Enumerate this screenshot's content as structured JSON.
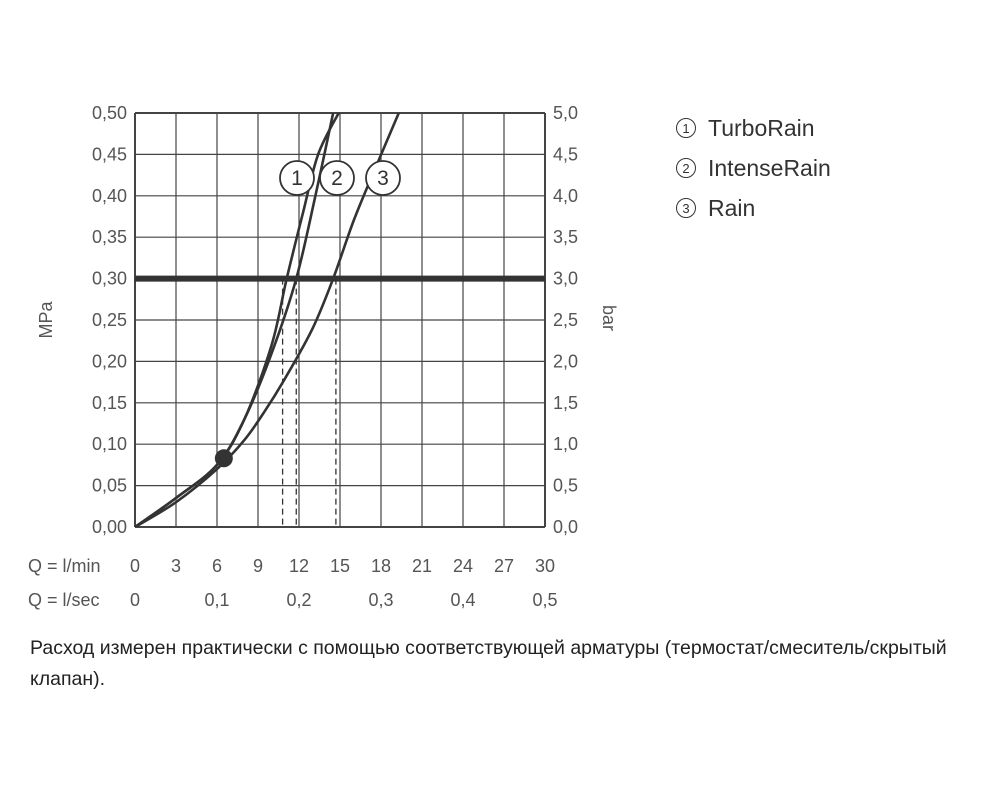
{
  "chart_data": {
    "type": "line",
    "x_scales": [
      {
        "label": "Q = l/min",
        "ticks": [
          "0",
          "3",
          "6",
          "9",
          "12",
          "15",
          "18",
          "21",
          "24",
          "27",
          "30"
        ]
      },
      {
        "label": "Q = l/sec",
        "ticks": [
          "0",
          "0,1",
          "0,2",
          "0,3",
          "0,4",
          "0,5"
        ]
      }
    ],
    "xlim": [
      0,
      30
    ],
    "ylim": [
      0,
      0.5
    ],
    "y_left": {
      "label": "MPa",
      "ticks": [
        "0,00",
        "0,05",
        "0,10",
        "0,15",
        "0,20",
        "0,25",
        "0,30",
        "0,35",
        "0,40",
        "0,45",
        "0,50"
      ]
    },
    "y_right": {
      "label": "bar",
      "ticks": [
        "0,0",
        "0,5",
        "1,0",
        "1,5",
        "2,0",
        "2,5",
        "3,0",
        "3,5",
        "4,0",
        "4,5",
        "5,0"
      ]
    },
    "grid": true,
    "reference_line": {
      "y": 0.3
    },
    "series": [
      {
        "name": "TurboRain",
        "label": "1",
        "x": [
          0,
          3,
          6,
          8,
          10,
          11.1,
          12.3,
          13.4,
          14.9
        ],
        "y": [
          0,
          0.035,
          0.075,
          0.13,
          0.22,
          0.3,
          0.38,
          0.45,
          0.5
        ]
      },
      {
        "name": "IntenseRain",
        "label": "2",
        "x": [
          0,
          3,
          6,
          8,
          10,
          11.8,
          13.2,
          14.5
        ],
        "y": [
          0,
          0.035,
          0.075,
          0.13,
          0.21,
          0.3,
          0.4,
          0.5
        ]
      },
      {
        "name": "Rain",
        "label": "3",
        "x": [
          0,
          3,
          6,
          8,
          9.5,
          11,
          13,
          14.5,
          16,
          17.5,
          19.3
        ],
        "y": [
          0,
          0.03,
          0.07,
          0.105,
          0.14,
          0.18,
          0.24,
          0.3,
          0.37,
          0.43,
          0.5
        ]
      }
    ],
    "marker": {
      "x": 6.5,
      "y": 0.083
    },
    "drop_lines": [
      {
        "x": 10.8,
        "y": 0.3
      },
      {
        "x": 11.8,
        "y": 0.3
      },
      {
        "x": 14.7,
        "y": 0.3
      }
    ],
    "legend_position": "right"
  },
  "caption": "Расход измерен практически с помощью соответствующей арматуры (термостат/смеситель/скрытый клапан)."
}
